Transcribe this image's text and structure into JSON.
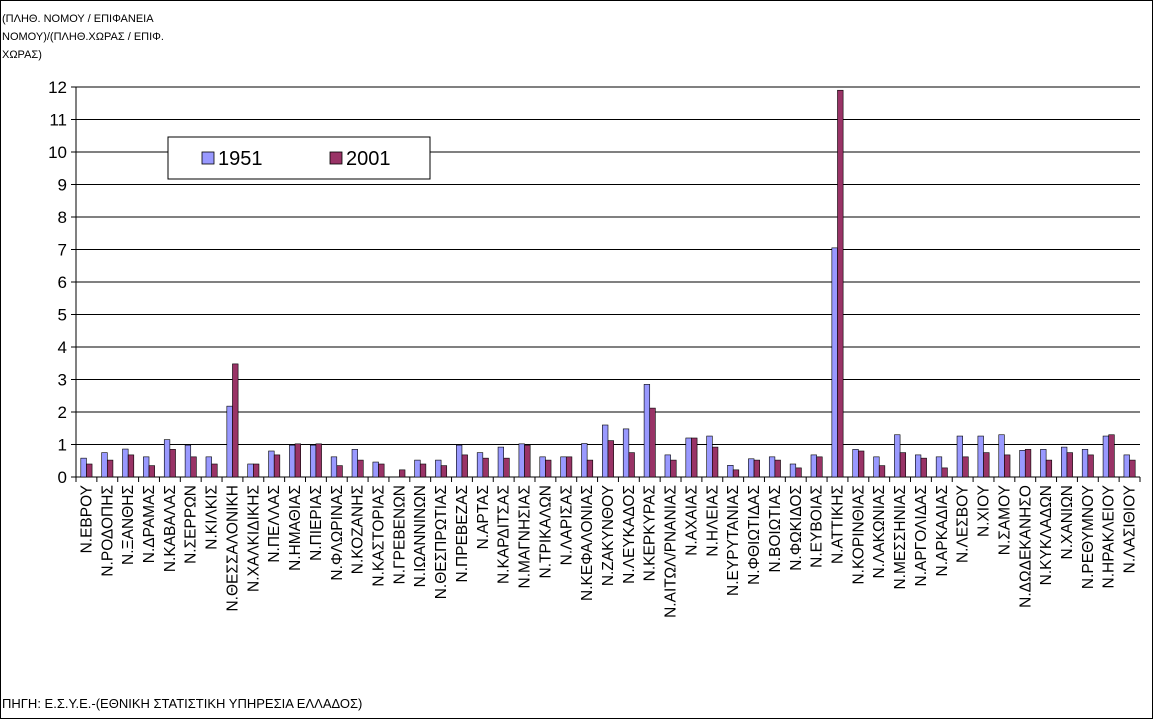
{
  "ylabel": "(ΠΛΗΘ. ΝΟΜΟΥ / ΕΠΙΦΑΝΕΙΑ\nΝΟΜΟΥ)/(ΠΛΗΘ.ΧΩΡΑΣ / ΕΠΙΦ.\nΧΩΡΑΣ)",
  "source": "ΠΗΓΗ: Ε.Σ.Υ.Ε.-(ΕΘΝΙΚΗ ΣΤΑΤΙΣΤΙΚΗ ΥΠΗΡΕΣΙΑ ΕΛΛΑΔΟΣ)",
  "colors": {
    "series_1951": "#9999FF",
    "series_2001": "#993366"
  },
  "chart_data": {
    "type": "bar",
    "title": "",
    "xlabel": "",
    "ylabel": "(ΠΛΗΘ. ΝΟΜΟΥ / ΕΠΙΦΑΝΕΙΑ ΝΟΜΟΥ)/(ΠΛΗΘ.ΧΩΡΑΣ / ΕΠΙΦ. ΧΩΡΑΣ)",
    "ylim": [
      0,
      12
    ],
    "yticks": [
      0,
      1,
      2,
      3,
      4,
      5,
      6,
      7,
      8,
      9,
      10,
      11,
      12
    ],
    "grid": true,
    "legend": "top-left",
    "categories": [
      "Ν.ΕΒΡΟΥ",
      "Ν.ΡΟΔΟΠΗΣ",
      "Ν.ΞΑΝΘΗΣ",
      "Ν.ΔΡΑΜΑΣ",
      "Ν.ΚΑΒΑΛΑΣ",
      "Ν.ΣΕΡΡΩΝ",
      "Ν.ΚΙΛΚΙΣ",
      "Ν.ΘΕΣΣΑΛΟΝΙΚΗ",
      "Ν.ΧΑΛΚΙΔΙΚΗΣ",
      "Ν.ΠΕΛΛΑΣ",
      "Ν.ΗΜΑΘΙΑΣ",
      "Ν.ΠΙΕΡΙΑΣ",
      "Ν.ΦΛΩΡΙΝΑΣ",
      "Ν.ΚΟΖΑΝΗΣ",
      "Ν.ΚΑΣΤΟΡΙΑΣ",
      "Ν.ΓΡΕΒΕΝΩΝ",
      "Ν.ΙΩΑΝΝΙΝΩΝ",
      "Ν.ΘΕΣΠΡΩΤΙΑΣ",
      "Ν.ΠΡΕΒΕΖΑΣ",
      "Ν.ΑΡΤΑΣ",
      "Ν.ΚΑΡΔΙΤΣΑΣ",
      "Ν.ΜΑΓΝΗΣΙΑΣ",
      "Ν.ΤΡΙΚΑΛΩΝ",
      "Ν.ΛΑΡΙΣΑΣ",
      "Ν.ΚΕΦΑΛΟΝΙΑΣ",
      "Ν.ΖΑΚΥΝΘΟΥ",
      "Ν.ΛΕΥΚΑΔΟΣ",
      "Ν.ΚΕΡΚΥΡΑΣ",
      "Ν.ΑΙΤΩΛ/ΡΝΑΝΙΑΣ",
      "Ν.ΑΧΑΙΑΣ",
      "Ν.ΗΛΕΙΑΣ",
      "Ν.ΕΥΡΥΤΑΝΙΑΣ",
      "Ν.ΦΘΙΩΤΙΔΑΣ",
      "Ν.ΒΟΙΩΤΙΑΣ",
      "Ν.ΦΩΚΙΔΟΣ",
      "Ν.ΕΥΒΟΙΑΣ",
      "Ν.ΑΤΤΙΚΗΣ",
      "Ν.ΚΟΡΙΝΘΙΑΣ",
      "Ν.ΛΑΚΩΝΙΑΣ",
      "Ν.ΜΕΣΣΗΝΙΑΣ",
      "Ν.ΑΡΓΟΛΙΔΑΣ",
      "Ν.ΑΡΚΑΔΙΑΣ",
      "Ν.ΛΕΣΒΟΥ",
      "Ν.ΧΙΟΥ",
      "Ν.ΣΑΜΟΥ",
      "Ν.ΔΩΔΕΚΑΝΗΣΟ",
      "Ν.ΚΥΚΛΑΔΩΝ",
      "Ν.ΧΑΝΙΩΝ",
      "Ν.ΡΕΘΥΜΝΟΥ",
      "Ν.ΗΡΑΚΛΕΙΟΥ",
      "Ν.ΛΑΣΙΘΙΟΥ"
    ],
    "series": [
      {
        "name": "1951",
        "values": [
          0.58,
          0.75,
          0.86,
          0.62,
          1.15,
          0.98,
          0.62,
          2.18,
          0.4,
          0.8,
          0.98,
          0.98,
          0.62,
          0.85,
          0.46,
          0.0,
          0.52,
          0.52,
          0.98,
          0.75,
          0.92,
          1.02,
          0.62,
          0.62,
          1.03,
          1.6,
          1.48,
          2.85,
          0.68,
          1.2,
          1.26,
          0.36,
          0.56,
          0.62,
          0.4,
          0.68,
          7.05,
          0.85,
          0.62,
          1.3,
          0.68,
          0.62,
          1.26,
          1.26,
          1.3,
          0.82,
          0.85,
          0.92,
          0.85,
          1.26,
          0.68
        ]
      },
      {
        "name": "2001",
        "values": [
          0.4,
          0.52,
          0.68,
          0.35,
          0.85,
          0.62,
          0.4,
          3.48,
          0.4,
          0.68,
          1.02,
          1.02,
          0.35,
          0.52,
          0.4,
          0.22,
          0.4,
          0.35,
          0.68,
          0.58,
          0.58,
          0.98,
          0.52,
          0.62,
          0.52,
          1.12,
          0.75,
          2.12,
          0.52,
          1.2,
          0.92,
          0.22,
          0.52,
          0.52,
          0.28,
          0.62,
          11.9,
          0.8,
          0.35,
          0.75,
          0.58,
          0.28,
          0.62,
          0.75,
          0.68,
          0.85,
          0.52,
          0.75,
          0.68,
          1.3,
          0.52
        ]
      }
    ]
  }
}
